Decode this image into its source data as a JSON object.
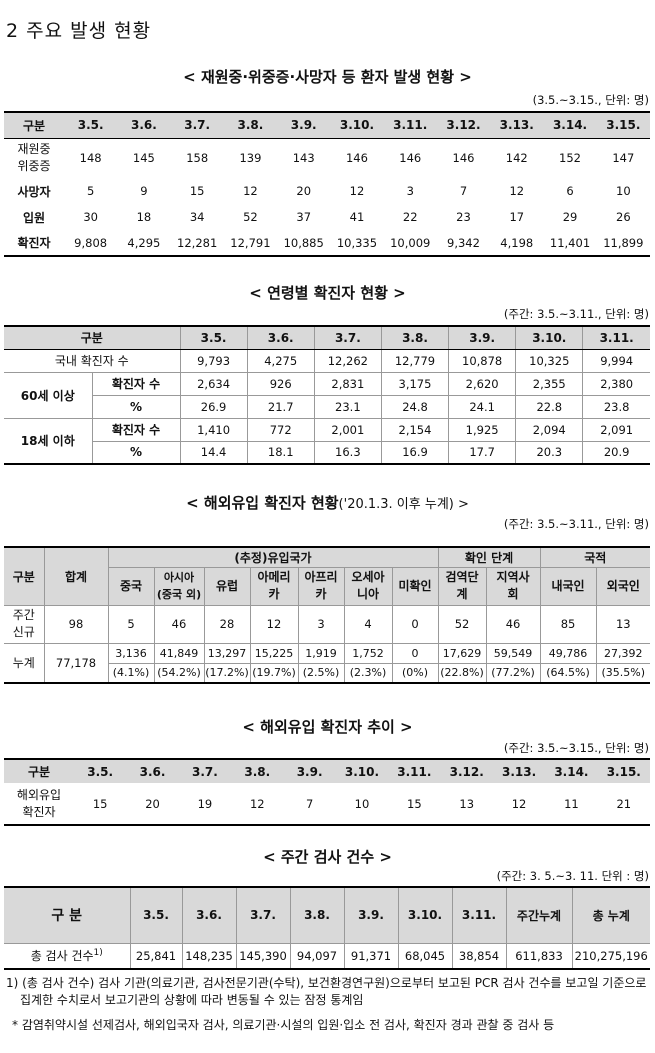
{
  "page_title": "2  주요 발생 현황",
  "severe": {
    "title": "< 재원중·위중증·사망자 등 환자 발생 현황    >",
    "unit": "(3.5.~3.15., 단위: 명)",
    "header": [
      "구분",
      "3.5.",
      "3.6.",
      "3.7.",
      "3.8.",
      "3.9.",
      "3.10.",
      "3.11.",
      "3.12.",
      "3.13.",
      "3.14.",
      "3.15."
    ],
    "rows": [
      {
        "label": "재원중\n위중증",
        "values": [
          "148",
          "145",
          "158",
          "139",
          "143",
          "146",
          "146",
          "146",
          "142",
          "152",
          "147"
        ]
      },
      {
        "label": "사망자",
        "values": [
          "5",
          "9",
          "15",
          "12",
          "20",
          "12",
          "3",
          "7",
          "12",
          "6",
          "10"
        ]
      },
      {
        "label": "입원",
        "values": [
          "30",
          "18",
          "34",
          "52",
          "37",
          "41",
          "22",
          "23",
          "17",
          "29",
          "26"
        ]
      },
      {
        "label": "확진자",
        "values": [
          "9,808",
          "4,295",
          "12,281",
          "12,791",
          "10,885",
          "10,335",
          "10,009",
          "9,342",
          "4,198",
          "11,401",
          "11,899"
        ]
      }
    ]
  },
  "age": {
    "title": "< 연령별 확진자 현황 >",
    "unit": "(주간: 3.5.~3.11., 단위: 명)",
    "header": [
      "구분",
      "3.5.",
      "3.6.",
      "3.7.",
      "3.8.",
      "3.9.",
      "3.10.",
      "3.11."
    ],
    "domestic_label": "국내 확진자 수",
    "domestic": [
      "9,793",
      "4,275",
      "12,262",
      "12,779",
      "10,878",
      "10,325",
      "9,994"
    ],
    "groups": [
      {
        "label": "60세 이상",
        "count_label": "확진자 수",
        "pct_label": "%",
        "counts": [
          "2,634",
          "926",
          "2,831",
          "3,175",
          "2,620",
          "2,355",
          "2,380"
        ],
        "pcts": [
          "26.9",
          "21.7",
          "23.1",
          "24.8",
          "24.1",
          "22.8",
          "23.8"
        ]
      },
      {
        "label": "18세 이하",
        "count_label": "확진자 수",
        "pct_label": "%",
        "counts": [
          "1,410",
          "772",
          "2,001",
          "2,154",
          "1,925",
          "2,094",
          "2,091"
        ],
        "pcts": [
          "14.4",
          "18.1",
          "16.3",
          "16.9",
          "17.7",
          "20.3",
          "20.9"
        ]
      }
    ]
  },
  "imported": {
    "title": "< 해외유입 확진자 현황",
    "title_note": "('20.1.3. 이후 누계) >",
    "unit": "(주간: 3.5.~3.11., 단위: 명)",
    "h_gubun": "구분",
    "h_total": "합계",
    "h_country": "(추정)유입국가",
    "h_stage": "확인 단계",
    "h_nation": "국적",
    "sub": [
      "중국",
      "아시아\n(중국 외)",
      "유럽",
      "아메리\n카",
      "아프리\n카",
      "오세아\n니아",
      "미확인",
      "검역단\n계",
      "지역사\n회",
      "내국인",
      "외국인"
    ],
    "weekly_label": "주간\n신규",
    "weekly_total": "98",
    "weekly": [
      "5",
      "46",
      "28",
      "12",
      "3",
      "4",
      "0",
      "52",
      "46",
      "85",
      "13"
    ],
    "cum_label": "누계",
    "cum_total": "77,178",
    "cum": [
      "3,136",
      "41,849",
      "13,297",
      "15,225",
      "1,919",
      "1,752",
      "0",
      "17,629",
      "59,549",
      "49,786",
      "27,392"
    ],
    "cum_pct": [
      "(4.1%)",
      "(54.2%)",
      "(17.2%)",
      "(19.7%)",
      "(2.5%)",
      "(2.3%)",
      "(0%)",
      "(22.8%)",
      "(77.2%)",
      "(64.5%)",
      "(35.5%)"
    ]
  },
  "imported_trend": {
    "title": "< 해외유입 확진자 추이 >",
    "unit": "(주간: 3.5.~3.15., 단위: 명)",
    "header": [
      "구분",
      "3.5.",
      "3.6.",
      "3.7.",
      "3.8.",
      "3.9.",
      "3.10.",
      "3.11.",
      "3.12.",
      "3.13.",
      "3.14.",
      "3.15."
    ],
    "row_label": "해외유입\n확진자",
    "values": [
      "15",
      "20",
      "19",
      "12",
      "7",
      "10",
      "15",
      "13",
      "12",
      "11",
      "21"
    ]
  },
  "tests": {
    "title": "< 주간 검사 건수 >",
    "unit": "(주간: 3. 5.~3. 11. 단위 : 명)",
    "header": [
      "구 분",
      "3.5.",
      "3.6.",
      "3.7.",
      "3.8.",
      "3.9.",
      "3.10.",
      "3.11.",
      "주간누계",
      "총 누계"
    ],
    "row_label": "총 검사 건수",
    "row_sup": "1)",
    "values": [
      "25,841",
      "148,235",
      "145,390",
      "94,097",
      "91,371",
      "68,045",
      "38,854",
      "611,833",
      "210,275,196"
    ]
  },
  "footnotes": {
    "note1": "1) (총 검사 건수) 검사 기관(의료기관, 검사전문기관(수탁), 보건환경연구원)으로부터 보고된 PCR 검사 건수를 보고일 기준으로 집계한 수치로서 보고기관의 상황에 따라 변동될 수 있는 잠정 통계임",
    "note2": "* 감염취약시설 선제검사, 해외입국자 검사, 의료기관·시설의 입원·입소 전 검사, 확진자 경과 관찰 중 검사 등"
  }
}
